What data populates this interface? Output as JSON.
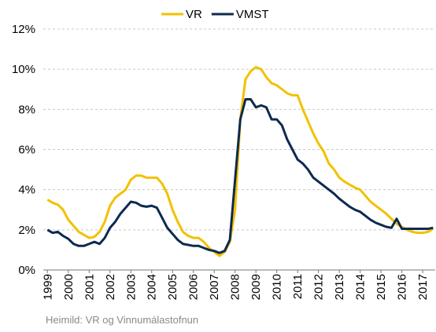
{
  "chart_data": {
    "type": "line",
    "legend_position": "top",
    "source": "Heimild: VR og Vinnumálastofnun",
    "x": [
      1999,
      1999.25,
      1999.5,
      1999.75,
      2000,
      2000.25,
      2000.5,
      2000.75,
      2001,
      2001.25,
      2001.5,
      2001.75,
      2002,
      2002.25,
      2002.5,
      2002.75,
      2003,
      2003.25,
      2003.5,
      2003.75,
      2004,
      2004.25,
      2004.5,
      2004.75,
      2005,
      2005.25,
      2005.5,
      2005.75,
      2006,
      2006.25,
      2006.5,
      2006.75,
      2007,
      2007.25,
      2007.5,
      2007.75,
      2008,
      2008.25,
      2008.5,
      2008.75,
      2009,
      2009.25,
      2009.5,
      2009.75,
      2010,
      2010.25,
      2010.5,
      2010.75,
      2011,
      2011.25,
      2011.5,
      2011.75,
      2012,
      2012.25,
      2012.5,
      2012.75,
      2013,
      2013.25,
      2013.5,
      2013.75,
      2014,
      2014.25,
      2014.5,
      2014.75,
      2015,
      2015.25,
      2015.5,
      2015.75,
      2016,
      2016.25,
      2016.5,
      2016.75,
      2017,
      2017.25,
      2017.5
    ],
    "series": [
      {
        "name": "VR",
        "color": "#f2c100",
        "values": [
          3.5,
          3.35,
          3.25,
          3.0,
          2.5,
          2.2,
          1.9,
          1.75,
          1.6,
          1.65,
          1.9,
          2.4,
          3.2,
          3.6,
          3.8,
          4.0,
          4.5,
          4.7,
          4.7,
          4.6,
          4.6,
          4.6,
          4.3,
          3.8,
          3.0,
          2.4,
          1.9,
          1.7,
          1.6,
          1.6,
          1.4,
          1.1,
          0.9,
          0.7,
          0.9,
          1.4,
          3.0,
          7.5,
          9.5,
          9.9,
          10.1,
          10.0,
          9.6,
          9.3,
          9.2,
          9.0,
          8.8,
          8.7,
          8.7,
          8.0,
          7.4,
          6.8,
          6.3,
          5.9,
          5.3,
          5.0,
          4.6,
          4.4,
          4.25,
          4.1,
          4.0,
          3.7,
          3.4,
          3.2,
          3.0,
          2.8,
          2.55,
          2.3,
          2.15,
          2.0,
          1.9,
          1.85,
          1.85,
          1.9,
          2.05
        ]
      },
      {
        "name": "VMST",
        "color": "#0d2a4f",
        "values": [
          2.0,
          1.85,
          1.9,
          1.7,
          1.55,
          1.3,
          1.2,
          1.2,
          1.3,
          1.4,
          1.3,
          1.6,
          2.1,
          2.4,
          2.8,
          3.1,
          3.4,
          3.35,
          3.2,
          3.15,
          3.2,
          3.1,
          2.6,
          2.1,
          1.8,
          1.5,
          1.3,
          1.25,
          1.2,
          1.2,
          1.1,
          1.0,
          0.95,
          0.85,
          0.95,
          1.5,
          4.5,
          7.5,
          8.5,
          8.5,
          8.1,
          8.2,
          8.1,
          7.5,
          7.5,
          7.2,
          6.5,
          6.0,
          5.5,
          5.3,
          5.0,
          4.6,
          4.4,
          4.2,
          4.0,
          3.8,
          3.55,
          3.35,
          3.15,
          3.0,
          2.9,
          2.7,
          2.5,
          2.35,
          2.25,
          2.15,
          2.1,
          2.55,
          2.05,
          2.05,
          2.05,
          2.05,
          2.05,
          2.05,
          2.1
        ]
      }
    ],
    "xlim": [
      1998.8,
      2017.6
    ],
    "xticks": [
      1999,
      2000,
      2001,
      2002,
      2003,
      2004,
      2005,
      2006,
      2007,
      2008,
      2009,
      2010,
      2011,
      2012,
      2013,
      2014,
      2015,
      2016,
      2017
    ],
    "ylim": [
      0,
      12
    ],
    "yticks": [
      {
        "value": 0,
        "label": "0%"
      },
      {
        "value": 2,
        "label": "2%"
      },
      {
        "value": 4,
        "label": "4%"
      },
      {
        "value": 6,
        "label": "6%"
      },
      {
        "value": 8,
        "label": "8%"
      },
      {
        "value": 10,
        "label": "10%"
      },
      {
        "value": 12,
        "label": "12%"
      }
    ],
    "grid": true
  }
}
